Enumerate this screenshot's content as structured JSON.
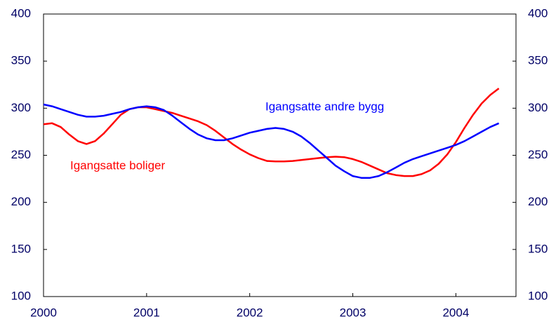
{
  "chart_data": {
    "type": "line",
    "x": [
      2000,
      2000.083,
      2000.167,
      2000.25,
      2000.333,
      2000.417,
      2000.5,
      2000.583,
      2000.667,
      2000.75,
      2000.833,
      2000.917,
      2001,
      2001.083,
      2001.167,
      2001.25,
      2001.333,
      2001.417,
      2001.5,
      2001.583,
      2001.667,
      2001.75,
      2001.833,
      2001.917,
      2002,
      2002.083,
      2002.167,
      2002.25,
      2002.333,
      2002.417,
      2002.5,
      2002.583,
      2002.667,
      2002.75,
      2002.833,
      2002.917,
      2003,
      2003.083,
      2003.167,
      2003.25,
      2003.333,
      2003.417,
      2003.5,
      2003.583,
      2003.667,
      2003.75,
      2003.833,
      2003.917,
      2004,
      2004.083,
      2004.167,
      2004.25,
      2004.333,
      2004.417
    ],
    "series": [
      {
        "name": "Igangsatte boliger",
        "color": "#ff0000",
        "values": [
          283,
          284,
          280,
          272,
          265,
          262,
          265,
          273,
          283,
          293,
          299,
          301,
          301,
          299,
          297,
          295,
          292,
          289,
          286,
          282,
          276,
          269,
          262,
          256,
          251,
          247,
          244,
          243.5,
          243.5,
          244,
          245,
          246,
          247,
          248,
          248.5,
          248,
          246,
          243,
          239,
          235,
          231,
          229,
          228,
          228,
          230,
          234,
          241,
          251,
          264,
          279,
          293,
          305,
          314,
          321
        ]
      },
      {
        "name": "Igangsatte andre bygg",
        "color": "#0000ff",
        "values": [
          304,
          302,
          299,
          296,
          293,
          291,
          291,
          292,
          294,
          296,
          299,
          301,
          302,
          301,
          298,
          292,
          285,
          278,
          272,
          268,
          266,
          266,
          268,
          271,
          274,
          276,
          278,
          279,
          278,
          275,
          270,
          263,
          255,
          247,
          239,
          233,
          228,
          226,
          226,
          228,
          232,
          237,
          242,
          246,
          249,
          252,
          255,
          258,
          261,
          265,
          270,
          275,
          280,
          284
        ]
      }
    ],
    "xlim": [
      2000,
      2004.583
    ],
    "xticks": [
      2000,
      2001,
      2002,
      2003,
      2004
    ],
    "ylim": [
      100,
      400
    ],
    "yticks": [
      100,
      150,
      200,
      250,
      300,
      350,
      400
    ],
    "y2lim": [
      100,
      400
    ],
    "y2ticks": [
      100,
      150,
      200,
      250,
      300,
      350,
      400
    ]
  }
}
